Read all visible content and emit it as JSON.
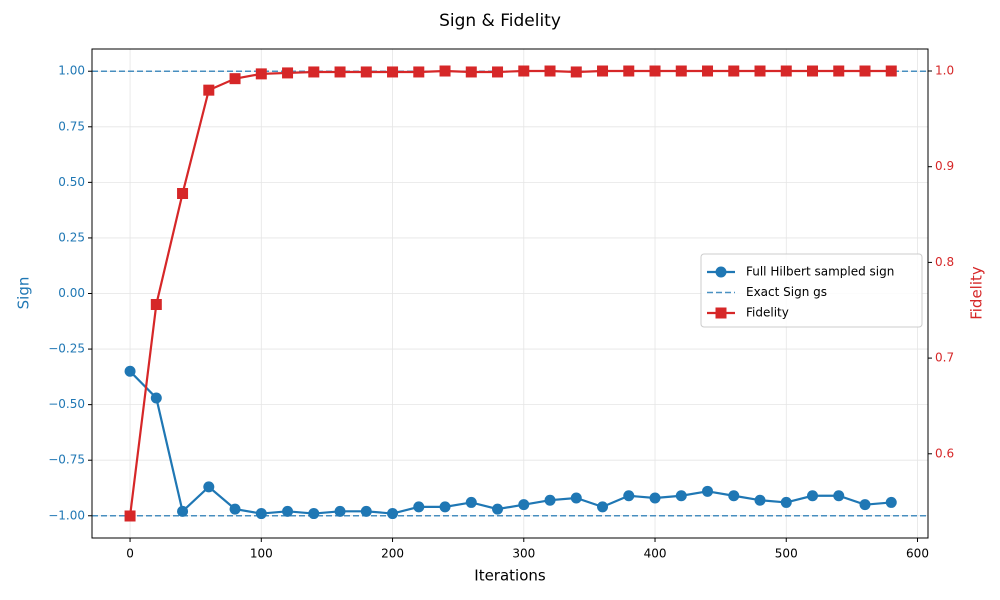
{
  "chart_data": {
    "type": "line",
    "title": "Sign & Fidelity",
    "xlabel": "Iterations",
    "ylabel": "Sign",
    "y2label": "Fidelity",
    "x": [
      0,
      20,
      40,
      60,
      80,
      100,
      120,
      140,
      160,
      180,
      200,
      220,
      240,
      260,
      280,
      300,
      320,
      340,
      360,
      380,
      400,
      420,
      440,
      460,
      480,
      500,
      520,
      540,
      560,
      580
    ],
    "series": [
      {
        "name": "Full Hilbert sampled sign",
        "color": "#1f77b4",
        "marker": "circle",
        "axis": "y",
        "values": [
          -0.35,
          -0.47,
          -0.98,
          -0.87,
          -0.97,
          -0.99,
          -0.98,
          -0.99,
          -0.98,
          -0.98,
          -0.99,
          -0.96,
          -0.96,
          -0.94,
          -0.97,
          -0.95,
          -0.93,
          -0.92,
          -0.96,
          -0.91,
          -0.92,
          -0.91,
          -0.89,
          -0.91,
          -0.93,
          -0.94,
          -0.91,
          -0.91,
          -0.95,
          -0.94
        ]
      },
      {
        "name": "Fidelity",
        "color": "#d62728",
        "marker": "square",
        "axis": "y2",
        "values": [
          0.535,
          0.756,
          0.872,
          0.98,
          0.992,
          0.997,
          0.998,
          0.999,
          0.999,
          0.999,
          0.999,
          0.999,
          1.0,
          0.999,
          0.999,
          1.0,
          1.0,
          0.999,
          1.0,
          1.0,
          1.0,
          1.0,
          1.0,
          1.0,
          1.0,
          1.0,
          1.0,
          1.0,
          1.0,
          1.0
        ]
      }
    ],
    "reference_lines": {
      "name": "Exact Sign gs",
      "color": "#1f77b4",
      "values": [
        1,
        -1
      ]
    },
    "xlim": [
      -29,
      608
    ],
    "xticks": [
      0,
      100,
      200,
      300,
      400,
      500,
      600
    ],
    "ylim": [
      -1.1,
      1.1
    ],
    "yticks": [
      {
        "value": -1,
        "label": "−1.00"
      },
      {
        "value": -0.75,
        "label": "−0.75"
      },
      {
        "value": -0.5,
        "label": "−0.50"
      },
      {
        "value": -0.25,
        "label": "−0.25"
      },
      {
        "value": 0,
        "label": "0.00"
      },
      {
        "value": 0.25,
        "label": "0.25"
      },
      {
        "value": 0.5,
        "label": "0.50"
      },
      {
        "value": 0.75,
        "label": "0.75"
      },
      {
        "value": 1,
        "label": "1.00"
      }
    ],
    "y2lim": [
      0.512,
      1.023
    ],
    "y2ticks": [
      0.6,
      0.7,
      0.8,
      0.9,
      {
        "value": 1,
        "label": "1.0"
      }
    ],
    "grid": true,
    "legend": "right"
  }
}
